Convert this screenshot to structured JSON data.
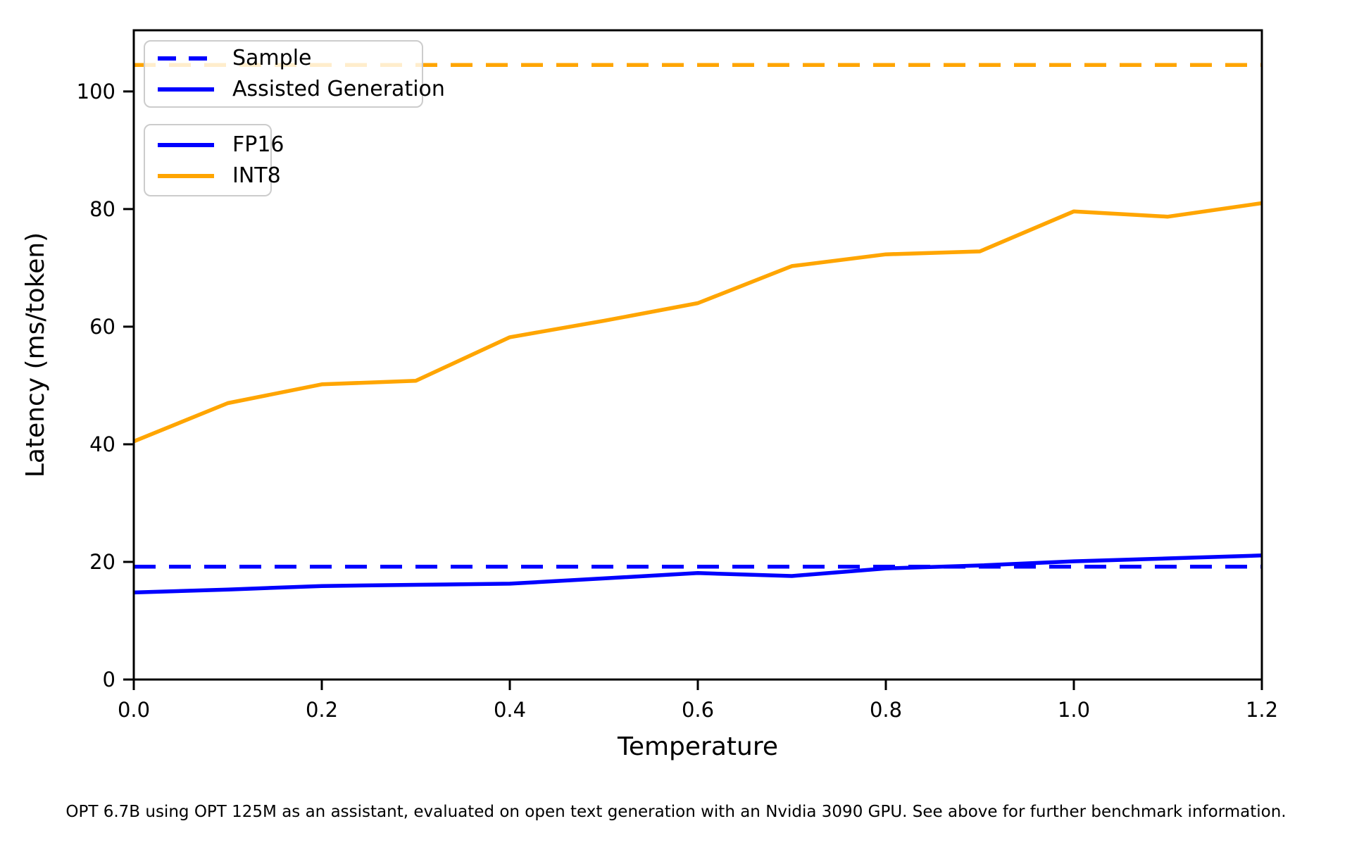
{
  "chart_data": {
    "type": "line",
    "xlabel": "Temperature",
    "ylabel": "Latency (ms/token)",
    "xlim": [
      0.0,
      1.2
    ],
    "ylim": [
      0,
      110.4
    ],
    "grid": false,
    "x_ticks": [
      "0.0",
      "0.2",
      "0.4",
      "0.6",
      "0.8",
      "1.0",
      "1.2"
    ],
    "x_tick_values": [
      0.0,
      0.2,
      0.4,
      0.6,
      0.8,
      1.0,
      1.2
    ],
    "y_ticks": [
      "0",
      "20",
      "40",
      "60",
      "80",
      "100"
    ],
    "y_tick_values": [
      0,
      20,
      40,
      60,
      80,
      100
    ],
    "x": [
      0.0,
      0.1,
      0.2,
      0.3,
      0.4,
      0.5,
      0.6,
      0.7,
      0.8,
      0.9,
      1.0,
      1.1,
      1.2
    ],
    "series": [
      {
        "name": "INT8 Sample",
        "style": "dashed",
        "color": "#ffa500",
        "constant": 104.5
      },
      {
        "name": "FP16 Sample",
        "style": "dashed",
        "color": "#0000ff",
        "constant": 19.2
      },
      {
        "name": "INT8 Assisted Generation",
        "style": "solid",
        "color": "#ffa500",
        "values": [
          40.5,
          47.0,
          50.2,
          50.8,
          58.2,
          61.0,
          64.0,
          70.3,
          72.3,
          72.8,
          79.6,
          78.7,
          81.0
        ]
      },
      {
        "name": "FP16 Assisted Generation",
        "style": "solid",
        "color": "#0000ff",
        "values": [
          14.8,
          15.3,
          15.9,
          16.1,
          16.3,
          17.2,
          18.1,
          17.6,
          18.9,
          19.4,
          20.1,
          20.6,
          21.1
        ]
      }
    ],
    "legends": [
      {
        "entries": [
          {
            "label": "Sample",
            "color": "#0000ff",
            "style": "dashed"
          },
          {
            "label": "Assisted Generation",
            "color": "#0000ff",
            "style": "solid"
          }
        ]
      },
      {
        "entries": [
          {
            "label": "FP16",
            "color": "#0000ff",
            "style": "solid"
          },
          {
            "label": "INT8",
            "color": "#ffa500",
            "style": "solid"
          }
        ]
      }
    ],
    "legend_position": "upper left",
    "axis_color": "#000000",
    "caption": "OPT 6.7B using OPT 125M as an assistant, evaluated on open text generation with an Nvidia 3090 GPU. See above for further benchmark information."
  }
}
